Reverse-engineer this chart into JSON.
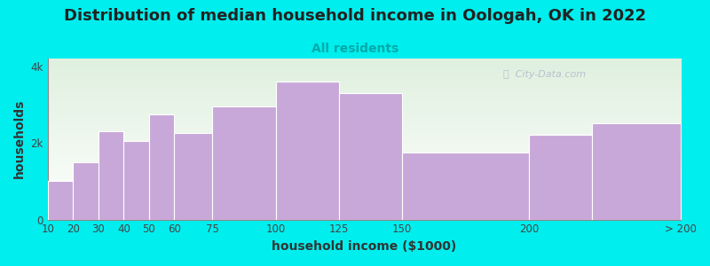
{
  "title": "Distribution of median household income in Oologah, OK in 2022",
  "subtitle": "All residents",
  "xlabel": "household income ($1000)",
  "ylabel": "households",
  "bar_color": "#c8a8d8",
  "bar_edge_color": "#ffffff",
  "background_color": "#00eeee",
  "plot_bg_top": "#dff0df",
  "plot_bg_bottom": "#ffffff",
  "watermark": "ⓘ  City-Data.com",
  "title_fontsize": 13,
  "subtitle_fontsize": 10,
  "axis_label_fontsize": 10,
  "tick_fontsize": 8.5,
  "bin_edges": [
    10,
    20,
    30,
    40,
    50,
    60,
    75,
    100,
    125,
    150,
    200,
    225,
    260
  ],
  "tick_positions": [
    10,
    20,
    30,
    40,
    50,
    60,
    75,
    100,
    125,
    150,
    200,
    260
  ],
  "tick_labels": [
    "10",
    "20",
    "30",
    "40",
    "50",
    "60",
    "75",
    "100",
    "125",
    "150",
    "200",
    "> 200"
  ],
  "values": [
    1000,
    1500,
    2300,
    2050,
    2750,
    2250,
    2950,
    3600,
    3300,
    1750,
    2200,
    2500
  ],
  "ylim": [
    0,
    4200
  ],
  "ytick_vals": [
    0,
    2000,
    4000
  ],
  "ytick_labels": [
    "0",
    "2k",
    "4k"
  ]
}
